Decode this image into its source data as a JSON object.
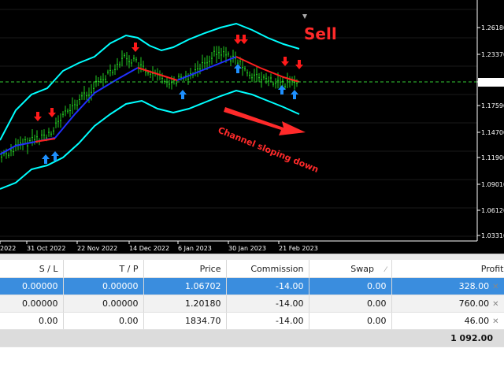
{
  "chart": {
    "annotation_sell": "Sell",
    "annotation_channel": "Channel sloping down",
    "price_labels": [
      "1.26180",
      "1.23370",
      "1.20170",
      "1.17590",
      "1.14700",
      "1.11900",
      "1.09010",
      "1.06120",
      "1.03310"
    ],
    "current_price": "1.20170",
    "date_labels": [
      "2022",
      "31 Oct 2022",
      "22 Nov 2022",
      "14 Dec 2022",
      "6 Jan 2023",
      "30 Jan 2023",
      "21 Feb 2023"
    ],
    "colors": {
      "background": "#000000",
      "bands": "#00ffff",
      "middle_up": "#2030ff",
      "middle_down": "#ff2020",
      "candles": "#22cc22",
      "arrow_sell": "#ff1a1a",
      "arrow_buy": "#1e90ff",
      "annotation": "#ff2a2a"
    },
    "icons": [
      "sell-arrow-icon",
      "buy-arrow-icon"
    ]
  },
  "terminal": {
    "columns": {
      "sl": "S / L",
      "tp": "T / P",
      "price": "Price",
      "commission": "Commission",
      "swap": "Swap",
      "profit": "Profit"
    },
    "rows": [
      {
        "sl": "0.00000",
        "tp": "0.00000",
        "price": "1.06702",
        "commission": "-14.00",
        "swap": "0.00",
        "profit": "328.00"
      },
      {
        "sl": "0.00000",
        "tp": "0.00000",
        "price": "1.20180",
        "commission": "-14.00",
        "swap": "0.00",
        "profit": "760.00"
      },
      {
        "sl": "0.00",
        "tp": "0.00",
        "price": "1834.70",
        "commission": "-14.00",
        "swap": "0.00",
        "profit": "46.00"
      }
    ],
    "total": "1 092.00"
  }
}
